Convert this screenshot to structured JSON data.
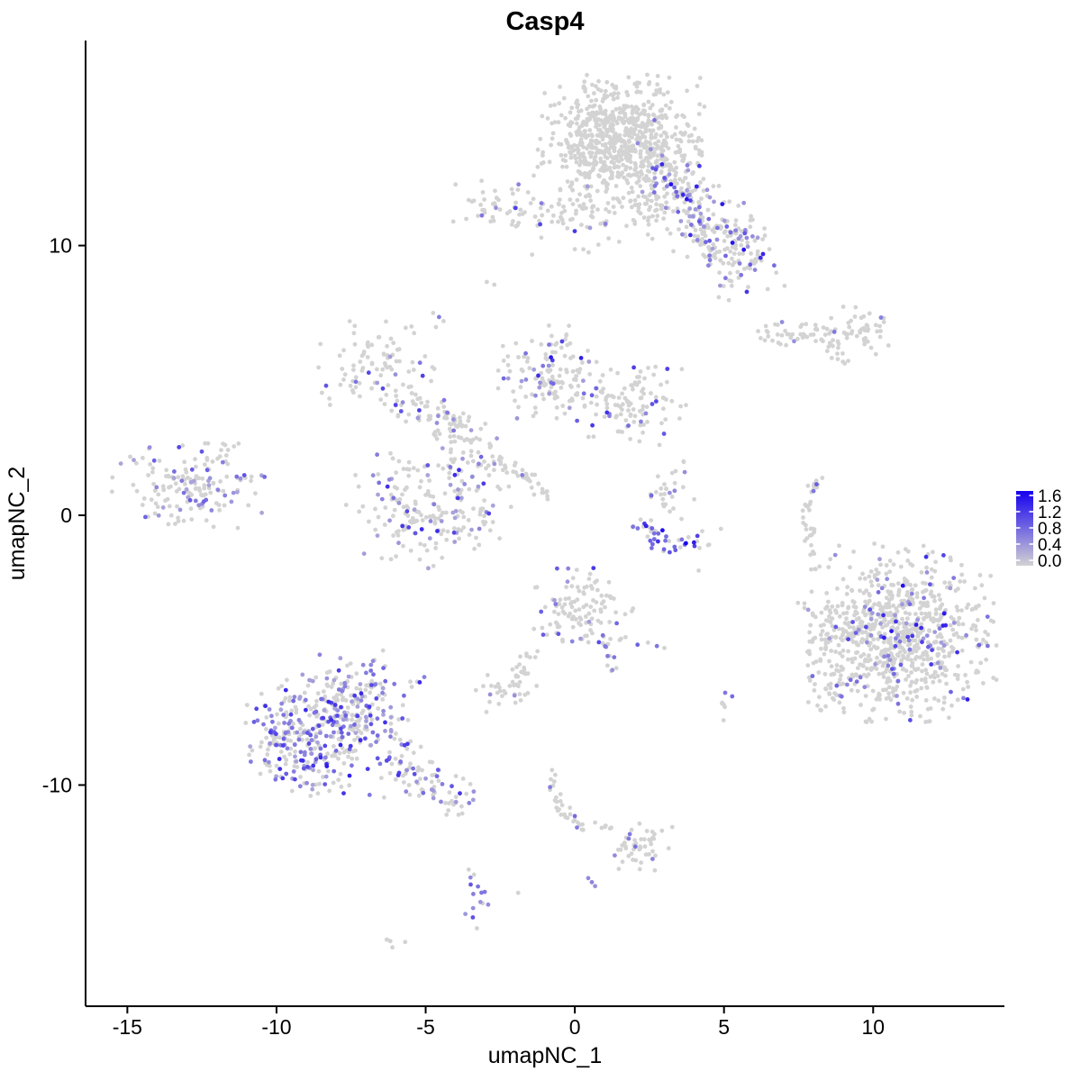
{
  "title": "Casp4",
  "axes": {
    "x": {
      "label": "umapNC_1",
      "ticks": [
        -15,
        -10,
        -5,
        0,
        5,
        10
      ],
      "range": [
        -16.4,
        14.4
      ]
    },
    "y": {
      "label": "umapNC_2",
      "ticks": [
        10,
        0,
        -10
      ],
      "range": [
        -18.2,
        17.6
      ]
    }
  },
  "legend": {
    "tick_labels": [
      "1.6",
      "1.2",
      "0.8",
      "0.4",
      "0.0"
    ],
    "tick_values": [
      1.6,
      1.2,
      0.8,
      0.4,
      0.0
    ],
    "max_value": 1.6,
    "low_color": "#d3d3d3",
    "high_color": "#1500f0"
  },
  "colors": {
    "background": "#ffffff",
    "point_grey": "#d3d3d3",
    "axis": "#000000"
  },
  "chart_data": {
    "type": "scatter",
    "title": "Casp4",
    "xlabel": "umapNC_1",
    "ylabel": "umapNC_2",
    "xlim": [
      -16.4,
      14.4
    ],
    "ylim": [
      -18.2,
      17.6
    ],
    "grid": false,
    "legend_position": "right",
    "point_radius": 2.4,
    "value_range": [
      0.0,
      1.6
    ],
    "clusters": [
      {
        "name": "top-main",
        "shape": "gauss",
        "cx": 1.6,
        "cy": 13.9,
        "sx": 1.25,
        "sy": 1.1,
        "count": 760,
        "frac": 0.02,
        "vlo": 0.4,
        "vhi": 1.0
      },
      {
        "name": "top-main-sparse",
        "shape": "gauss",
        "cx": 1.5,
        "cy": 11.3,
        "sx": 1.6,
        "sy": 0.9,
        "count": 130,
        "frac": 0.06,
        "vlo": 0.4,
        "vhi": 1.2
      },
      {
        "name": "top-arm",
        "shape": "line",
        "x1": 2.9,
        "y1": 12.7,
        "x2": 6.1,
        "y2": 9.4,
        "w": 0.6,
        "count": 200,
        "frac": 0.28,
        "vlo": 0.4,
        "vhi": 1.5
      },
      {
        "name": "top-arm-lower",
        "shape": "line",
        "x1": 4.1,
        "y1": 10.6,
        "x2": 5.6,
        "y2": 8.9,
        "w": 0.5,
        "count": 70,
        "frac": 0.15,
        "vlo": 0.4,
        "vhi": 1.2
      },
      {
        "name": "topleft-small",
        "shape": "gauss",
        "cx": -2.2,
        "cy": 11.5,
        "sx": 0.9,
        "sy": 0.55,
        "count": 55,
        "frac": 0.1,
        "vlo": 0.5,
        "vhi": 1.3
      },
      {
        "name": "topleft-arm",
        "shape": "line",
        "x1": -1.1,
        "y1": 11.15,
        "x2": -0.2,
        "y2": 11.0,
        "w": 0.2,
        "count": 10,
        "frac": 0,
        "vlo": 0,
        "vhi": 0
      },
      {
        "name": "right-streak",
        "shape": "line",
        "x1": 6.4,
        "y1": 6.7,
        "x2": 8.3,
        "y2": 6.75,
        "w": 0.28,
        "count": 42,
        "frac": 0.02,
        "vlo": 0.5,
        "vhi": 0.8
      },
      {
        "name": "right-blob",
        "shape": "gauss",
        "cx": 9.4,
        "cy": 6.85,
        "sx": 0.6,
        "sy": 0.4,
        "count": 55,
        "frac": 0.02,
        "vlo": 0.5,
        "vhi": 0.9
      },
      {
        "name": "right-bit",
        "shape": "line",
        "x1": 8.5,
        "y1": 6.15,
        "x2": 9.05,
        "y2": 5.7,
        "w": 0.12,
        "count": 9,
        "frac": 0,
        "vlo": 0,
        "vhi": 0
      },
      {
        "name": "mid-lobe-nw",
        "shape": "gauss",
        "cx": -6.5,
        "cy": 5.4,
        "sx": 0.95,
        "sy": 0.8,
        "count": 95,
        "frac": 0.12,
        "vlo": 0.4,
        "vhi": 1.2
      },
      {
        "name": "mid-arm-nw",
        "shape": "line",
        "x1": -6.0,
        "y1": 4.3,
        "x2": -3.5,
        "y2": 3.3,
        "w": 0.35,
        "count": 55,
        "frac": 0.14,
        "vlo": 0.4,
        "vhi": 1.1
      },
      {
        "name": "mid-lobe-n",
        "shape": "gauss",
        "cx": -0.8,
        "cy": 5.2,
        "sx": 0.9,
        "sy": 0.8,
        "count": 135,
        "frac": 0.18,
        "vlo": 0.4,
        "vhi": 1.4
      },
      {
        "name": "mid-lobe-ne",
        "shape": "gauss",
        "cx": 1.8,
        "cy": 4.1,
        "sx": 0.9,
        "sy": 0.7,
        "count": 110,
        "frac": 0.15,
        "vlo": 0.4,
        "vhi": 1.3
      },
      {
        "name": "mid-chain",
        "shape": "line",
        "x1": -4.6,
        "y1": 3.9,
        "x2": -2.8,
        "y2": 1.7,
        "w": 0.45,
        "count": 60,
        "frac": 0.12,
        "vlo": 0.4,
        "vhi": 1.2
      },
      {
        "name": "mid-lobe-s",
        "shape": "gauss",
        "cx": -4.9,
        "cy": 0.4,
        "sx": 1.25,
        "sy": 1.1,
        "count": 215,
        "frac": 0.27,
        "vlo": 0.35,
        "vhi": 1.3
      },
      {
        "name": "mid-streak",
        "shape": "line",
        "x1": -2.6,
        "y1": 2.2,
        "x2": -0.9,
        "y2": 0.75,
        "w": 0.13,
        "count": 34,
        "frac": 0.04,
        "vlo": 0.6,
        "vhi": 0.9
      },
      {
        "name": "left",
        "shape": "gauss",
        "cx": -13.0,
        "cy": 1.0,
        "sx": 1.15,
        "sy": 0.75,
        "count": 155,
        "frac": 0.3,
        "vlo": 0.35,
        "vhi": 1.1
      },
      {
        "name": "left-arm",
        "shape": "line",
        "x1": -12.1,
        "y1": 1.9,
        "x2": -11.3,
        "y2": 2.8,
        "w": 0.18,
        "count": 14,
        "frac": 0.2,
        "vlo": 0.5,
        "vhi": 1.0
      },
      {
        "name": "midright-top",
        "shape": "gauss",
        "cx": 3.05,
        "cy": 0.9,
        "sx": 0.5,
        "sy": 0.55,
        "count": 30,
        "frac": 0.2,
        "vlo": 0.5,
        "vhi": 1.2
      },
      {
        "name": "midright-arc",
        "shape": "arc",
        "x1": 1.95,
        "y1": -0.1,
        "cx": 3.2,
        "cy": -1.7,
        "x2": 4.75,
        "y2": -0.6,
        "w": 0.22,
        "count": 44,
        "frac": 0.5,
        "vlo": 0.7,
        "vhi": 1.6
      },
      {
        "name": "sliver",
        "shape": "arc",
        "x1": 8.15,
        "y1": 1.35,
        "cx": 7.6,
        "cy": 0.2,
        "x2": 7.95,
        "y2": -0.9,
        "w": 0.13,
        "count": 30,
        "frac": 0.03,
        "vlo": 0.5,
        "vhi": 0.8
      },
      {
        "name": "sliver-trail",
        "shape": "line",
        "x1": 7.95,
        "y1": -1.3,
        "x2": 8.1,
        "y2": -2.0,
        "w": 0.1,
        "count": 5,
        "frac": 0,
        "vlo": 0,
        "vhi": 0
      },
      {
        "name": "right-main",
        "shape": "gauss",
        "cx": 11.0,
        "cy": -4.4,
        "sx": 1.4,
        "sy": 1.5,
        "count": 800,
        "frac": 0.13,
        "vlo": 0.4,
        "vhi": 1.5
      },
      {
        "name": "right-append",
        "shape": "line",
        "x1": 8.35,
        "y1": -3.6,
        "x2": 8.6,
        "y2": -6.9,
        "w": 0.5,
        "count": 85,
        "frac": 0.07,
        "vlo": 0.4,
        "vhi": 1.1
      },
      {
        "name": "center",
        "shape": "gauss",
        "cx": 0.1,
        "cy": -3.4,
        "sx": 0.85,
        "sy": 0.75,
        "count": 115,
        "frac": 0.12,
        "vlo": 0.4,
        "vhi": 1.3
      },
      {
        "name": "center-arm",
        "shape": "line",
        "x1": 1.0,
        "y1": -4.5,
        "x2": 1.25,
        "y2": -5.8,
        "w": 0.12,
        "count": 15,
        "frac": 0.4,
        "vlo": 0.5,
        "vhi": 1.1
      },
      {
        "name": "center-trail",
        "shape": "arc",
        "x1": -1.2,
        "y1": -4.9,
        "cx": -2.2,
        "cy": -5.4,
        "x2": -1.9,
        "y2": -6.9,
        "w": 0.12,
        "count": 22,
        "frac": 0.03,
        "vlo": 0.5,
        "vhi": 0.8
      },
      {
        "name": "bottomleft-main",
        "shape": "gauss",
        "cx": -8.5,
        "cy": -8.2,
        "sx": 1.15,
        "sy": 1.05,
        "count": 280,
        "frac": 0.45,
        "vlo": 0.35,
        "vhi": 1.4
      },
      {
        "name": "bottomleft-upper",
        "shape": "gauss",
        "cx": -7.2,
        "cy": -6.9,
        "sx": 0.95,
        "sy": 0.85,
        "count": 175,
        "frac": 0.4,
        "vlo": 0.35,
        "vhi": 1.3
      },
      {
        "name": "bottomleft-tail",
        "shape": "line",
        "x1": -6.2,
        "y1": -9.0,
        "x2": -3.9,
        "y2": -10.5,
        "w": 0.4,
        "count": 85,
        "frac": 0.35,
        "vlo": 0.4,
        "vhi": 1.3
      },
      {
        "name": "bottomleft-side",
        "shape": "gauss",
        "cx": -10.0,
        "cy": -8.2,
        "sx": 0.4,
        "sy": 0.8,
        "count": 42,
        "frac": 0.55,
        "vlo": 0.5,
        "vhi": 1.3
      },
      {
        "name": "small-grey-mid",
        "shape": "gauss",
        "cx": -2.5,
        "cy": -6.5,
        "sx": 0.55,
        "sy": 0.45,
        "count": 26,
        "frac": 0.04,
        "vlo": 0.5,
        "vhi": 0.8
      },
      {
        "name": "bottom-streak",
        "shape": "arc",
        "x1": -0.75,
        "y1": -9.3,
        "cx": -0.8,
        "cy": -10.4,
        "x2": -0.2,
        "y2": -11.2,
        "w": 0.12,
        "count": 22,
        "frac": 0.04,
        "vlo": 0.6,
        "vhi": 1.0
      },
      {
        "name": "bottom-streak2",
        "shape": "line",
        "x1": -0.15,
        "y1": -11.2,
        "x2": 0.35,
        "y2": -11.7,
        "w": 0.1,
        "count": 8,
        "frac": 0.1,
        "vlo": 0.6,
        "vhi": 0.9
      },
      {
        "name": "bottom-chain",
        "shape": "line",
        "x1": 0.6,
        "y1": -11.45,
        "x2": 1.35,
        "y2": -11.6,
        "w": 0.06,
        "count": 6,
        "frac": 0,
        "vlo": 0,
        "vhi": 0
      },
      {
        "name": "bottom-blob",
        "shape": "gauss",
        "cx": 2.2,
        "cy": -12.3,
        "sx": 0.5,
        "sy": 0.38,
        "count": 48,
        "frac": 0.08,
        "vlo": 0.5,
        "vhi": 1.2
      },
      {
        "name": "bottom-vertical",
        "shape": "line",
        "x1": -3.45,
        "y1": -13.25,
        "x2": -3.2,
        "y2": -15.05,
        "w": 0.25,
        "count": 15,
        "frac": 0.7,
        "vlo": 0.45,
        "vhi": 1.0
      },
      {
        "name": "bottom-tiny",
        "shape": "line",
        "x1": -6.35,
        "y1": -15.7,
        "x2": -5.8,
        "y2": -15.95,
        "w": 0.1,
        "count": 6,
        "frac": 0,
        "vlo": 0,
        "vhi": 0
      },
      {
        "name": "pair-se",
        "shape": "gauss",
        "cx": 5.05,
        "cy": -7.0,
        "sx": 0.2,
        "sy": 0.35,
        "count": 7,
        "frac": 0.35,
        "vlo": 0.5,
        "vhi": 1.0
      }
    ],
    "extra_points": [
      [
        -4.3,
        -11.1,
        0
      ],
      [
        -3.9,
        -11.1,
        0
      ],
      [
        -1.9,
        -14.0,
        0
      ],
      [
        4.15,
        -2.05,
        0
      ],
      [
        8.2,
        -1.9,
        0
      ],
      [
        -2.95,
        8.65,
        0
      ],
      [
        -2.7,
        8.55,
        0
      ],
      [
        -4.55,
        7.35,
        0.65
      ],
      [
        -4.75,
        7.5,
        0
      ],
      [
        -4.4,
        7.2,
        0
      ],
      [
        0.45,
        -13.45,
        0.55
      ],
      [
        0.57,
        -13.6,
        0.6
      ],
      [
        0.68,
        -13.75,
        0.5
      ],
      [
        2.1,
        -4.8,
        0.85
      ],
      [
        2.75,
        -4.85,
        0.7
      ],
      [
        3.0,
        -4.92,
        0
      ],
      [
        2.45,
        -4.72,
        0
      ],
      [
        8.1,
        1.15,
        0.9
      ],
      [
        8.0,
        0.9,
        0.7
      ],
      [
        8.7,
        6.8,
        0.7
      ],
      [
        0.0,
        -11.15,
        0.8
      ]
    ]
  }
}
